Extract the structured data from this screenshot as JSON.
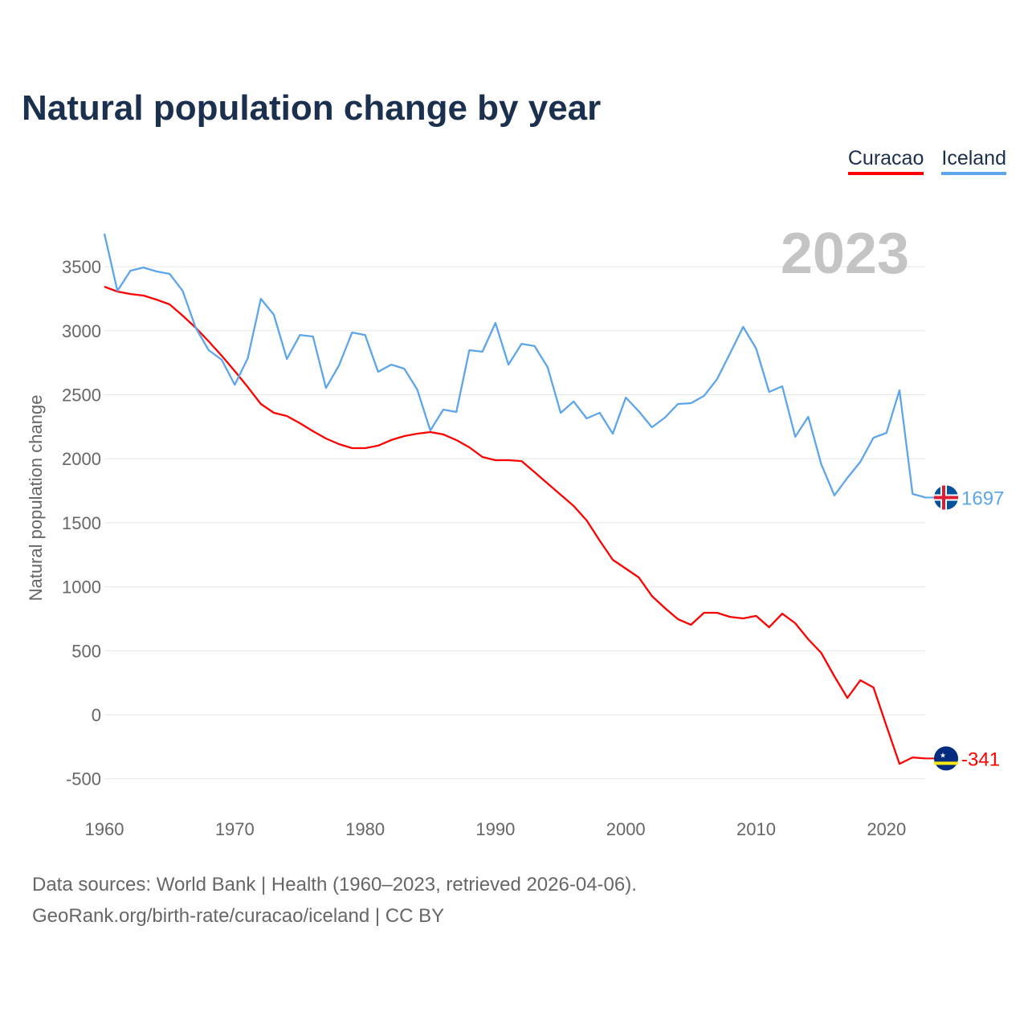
{
  "chart_data": {
    "type": "line",
    "title": "Natural population change by year",
    "ylabel": "Natural population change",
    "xlabel": "",
    "year_label": "2023",
    "xlim": [
      1960,
      2023
    ],
    "ylim": [
      -600,
      3800
    ],
    "yticks": [
      -500,
      0,
      500,
      1000,
      1500,
      2000,
      2500,
      3000,
      3500
    ],
    "xticks": [
      1960,
      1970,
      1980,
      1990,
      2000,
      2010,
      2020
    ],
    "grid": true,
    "legend_position": "top-right",
    "x": [
      1960,
      1961,
      1962,
      1963,
      1964,
      1965,
      1966,
      1967,
      1968,
      1969,
      1970,
      1971,
      1972,
      1973,
      1974,
      1975,
      1976,
      1977,
      1978,
      1979,
      1980,
      1981,
      1982,
      1983,
      1984,
      1985,
      1986,
      1987,
      1988,
      1989,
      1990,
      1991,
      1992,
      1993,
      1994,
      1995,
      1996,
      1997,
      1998,
      1999,
      2000,
      2001,
      2002,
      2003,
      2004,
      2005,
      2006,
      2007,
      2008,
      2009,
      2010,
      2011,
      2012,
      2013,
      2014,
      2015,
      2016,
      2017,
      2018,
      2019,
      2020,
      2021,
      2022,
      2023
    ],
    "series": [
      {
        "name": "Curacao",
        "color": "#ff0000",
        "end_label": "-341",
        "values": [
          3344,
          3306,
          3287,
          3275,
          3243,
          3206,
          3118,
          3024,
          2917,
          2804,
          2685,
          2560,
          2428,
          2359,
          2334,
          2277,
          2215,
          2158,
          2114,
          2083,
          2083,
          2102,
          2146,
          2177,
          2196,
          2208,
          2190,
          2146,
          2089,
          2014,
          1989,
          1989,
          1982,
          1895,
          1807,
          1719,
          1631,
          1518,
          1361,
          1211,
          1142,
          1073,
          928,
          834,
          747,
          703,
          797,
          797,
          765,
          753,
          772,
          684,
          790,
          715,
          590,
          483,
          301,
          132,
          270,
          213,
          -88,
          -383,
          -333,
          -341
        ]
      },
      {
        "name": "Iceland",
        "color": "#5da5ea",
        "end_label": "1697",
        "values": [
          3758,
          3312,
          3469,
          3494,
          3463,
          3444,
          3312,
          3024,
          2848,
          2773,
          2578,
          2785,
          3250,
          3124,
          2779,
          2967,
          2955,
          2553,
          2729,
          2986,
          2967,
          2679,
          2735,
          2704,
          2541,
          2221,
          2384,
          2365,
          2848,
          2836,
          3061,
          2735,
          2898,
          2880,
          2716,
          2359,
          2447,
          2315,
          2359,
          2196,
          2478,
          2371,
          2246,
          2321,
          2428,
          2434,
          2491,
          2622,
          2823,
          3030,
          2861,
          2522,
          2566,
          2171,
          2328,
          1957,
          1713,
          1851,
          1976,
          2164,
          2202,
          2535,
          1725,
          1697
        ]
      }
    ]
  },
  "footer": {
    "sources": "Data sources: World Bank | Health (1960–2023, retrieved 2026-04-06).",
    "attribution": "GeoRank.org/birth-rate/curacao/iceland | CC BY"
  }
}
